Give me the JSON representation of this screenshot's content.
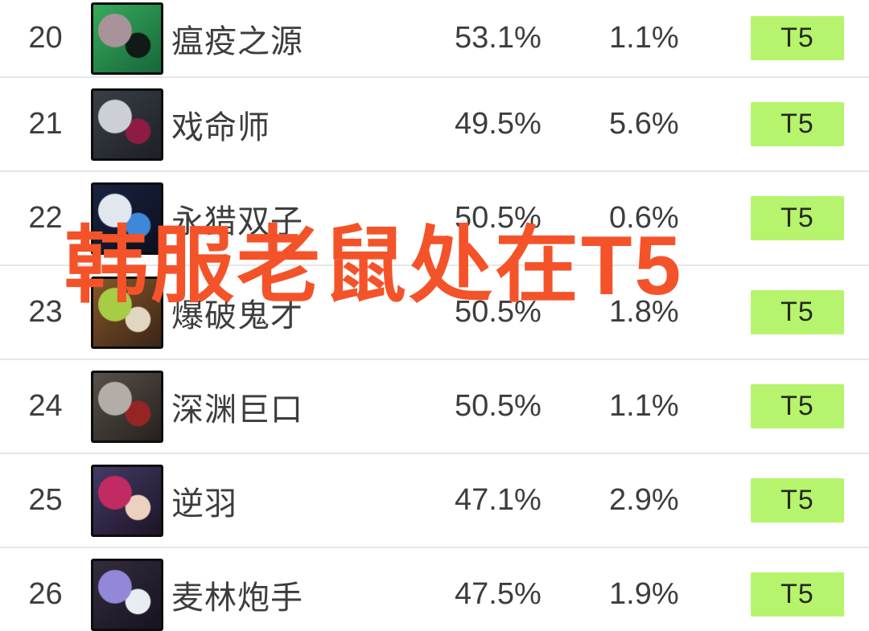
{
  "watermark": {
    "text": "韩服老鼠处在T5",
    "color": "#f4532a"
  },
  "colors": {
    "background": "#ffffff",
    "row_divider": "#e6e6e6",
    "text": "#3d3d3d",
    "badge_bg": "#b7f46d",
    "badge_text": "#262b20"
  },
  "table": {
    "rows": [
      {
        "rank": "20",
        "name": "瘟疫之源",
        "win_rate": "53.1%",
        "pick_rate": "1.1%",
        "tier": "T5",
        "icon": "twitch-icon",
        "icon_colors": [
          "#36ab5b",
          "#17663a",
          "#a9939b",
          "#111a14"
        ]
      },
      {
        "rank": "21",
        "name": "戏命师",
        "win_rate": "49.5%",
        "pick_rate": "5.6%",
        "tier": "T5",
        "icon": "jhin-icon",
        "icon_colors": [
          "#3a3e47",
          "#1d2026",
          "#ccd0d6",
          "#8e1b44"
        ]
      },
      {
        "rank": "22",
        "name": "永猎双子",
        "win_rate": "50.5%",
        "pick_rate": "0.6%",
        "tier": "T5",
        "icon": "kindred-icon",
        "icon_colors": [
          "#18233f",
          "#0b101f",
          "#e2e6ee",
          "#3f87d8"
        ]
      },
      {
        "rank": "23",
        "name": "爆破鬼才",
        "win_rate": "50.5%",
        "pick_rate": "1.8%",
        "tier": "T5",
        "icon": "ziggs-icon",
        "icon_colors": [
          "#86572a",
          "#3a2517",
          "#a6cd45",
          "#e0d6c2"
        ]
      },
      {
        "rank": "24",
        "name": "深渊巨口",
        "win_rate": "50.5%",
        "pick_rate": "1.1%",
        "tier": "T5",
        "icon": "kogmaw-icon",
        "icon_colors": [
          "#57504a",
          "#26211e",
          "#b2ada6",
          "#952525"
        ]
      },
      {
        "rank": "25",
        "name": "逆羽",
        "win_rate": "47.1%",
        "pick_rate": "2.9%",
        "tier": "T5",
        "icon": "xayah-icon",
        "icon_colors": [
          "#443a66",
          "#1c1526",
          "#c22a62",
          "#ecd0c0"
        ]
      },
      {
        "rank": "26",
        "name": "麦林炮手",
        "win_rate": "47.5%",
        "pick_rate": "1.9%",
        "tier": "T5",
        "icon": "tristana-icon",
        "icon_colors": [
          "#332c3e",
          "#171320",
          "#9287d8",
          "#e8edf4"
        ]
      }
    ]
  }
}
